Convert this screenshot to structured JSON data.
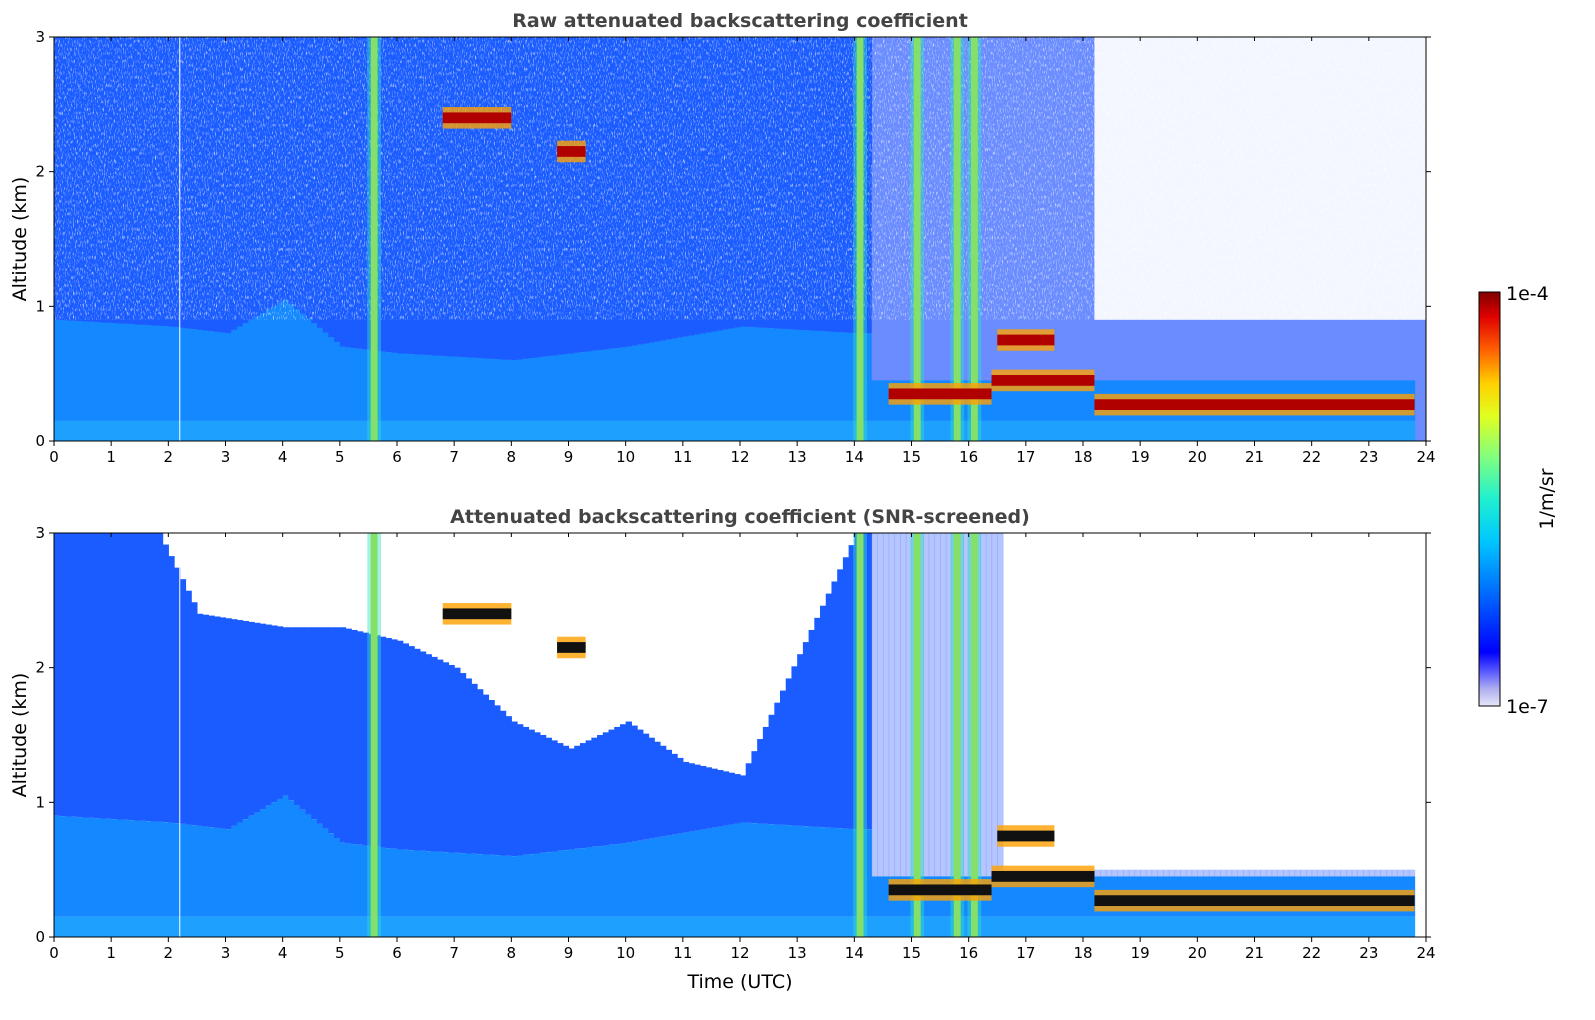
{
  "chart_data": [
    {
      "type": "heatmap",
      "title": "Raw attenuated backscattering coefficient",
      "xlabel": "",
      "ylabel": "Altitude (km)",
      "xlim": [
        0,
        24
      ],
      "ylim": [
        0,
        3
      ],
      "x_ticks": [
        "0",
        "1",
        "2",
        "3",
        "4",
        "5",
        "6",
        "7",
        "8",
        "9",
        "10",
        "11",
        "12",
        "13",
        "14",
        "15",
        "16",
        "17",
        "18",
        "19",
        "20",
        "21",
        "22",
        "23",
        "24"
      ],
      "y_ticks": [
        "0",
        "1",
        "2",
        "3"
      ],
      "colorscale": "jet",
      "features": {
        "boundary_layer_top_km": [
          {
            "t": 0,
            "h": 0.9
          },
          {
            "t": 2,
            "h": 0.85
          },
          {
            "t": 3,
            "h": 0.8
          },
          {
            "t": 4,
            "h": 1.05
          },
          {
            "t": 5,
            "h": 0.7
          },
          {
            "t": 6,
            "h": 0.65
          },
          {
            "t": 8,
            "h": 0.6
          },
          {
            "t": 10,
            "h": 0.7
          },
          {
            "t": 12,
            "h": 0.85
          },
          {
            "t": 14,
            "h": 0.8
          }
        ],
        "cloud_layers": [
          {
            "t_start": 6.8,
            "t_end": 8.0,
            "h": 2.4
          },
          {
            "t_start": 8.8,
            "t_end": 9.3,
            "h": 2.15
          },
          {
            "t_start": 14.6,
            "t_end": 16.4,
            "h": 0.35
          },
          {
            "t_start": 16.4,
            "t_end": 18.2,
            "h": 0.45
          },
          {
            "t_start": 16.5,
            "t_end": 17.5,
            "h": 0.75
          },
          {
            "t_start": 18.2,
            "t_end": 23.8,
            "h": 0.27
          }
        ],
        "precipitation_bands_utc": [
          5.6,
          14.1,
          15.1,
          15.8,
          16.1
        ]
      }
    },
    {
      "type": "heatmap",
      "title": "Attenuated backscattering coefficient (SNR-screened)",
      "xlabel": "Time (UTC)",
      "ylabel": "Altitude (km)",
      "xlim": [
        0,
        24
      ],
      "ylim": [
        0,
        3
      ],
      "x_ticks": [
        "0",
        "1",
        "2",
        "3",
        "4",
        "5",
        "6",
        "7",
        "8",
        "9",
        "10",
        "11",
        "12",
        "13",
        "14",
        "15",
        "16",
        "17",
        "18",
        "19",
        "20",
        "21",
        "22",
        "23",
        "24"
      ],
      "y_ticks": [
        "0",
        "1",
        "2",
        "3"
      ],
      "colorscale": "jet",
      "features": {
        "screened_top_km": [
          {
            "t": 0,
            "h": 3.0
          },
          {
            "t": 1.8,
            "h": 3.0
          },
          {
            "t": 2.5,
            "h": 2.4
          },
          {
            "t": 4,
            "h": 2.3
          },
          {
            "t": 5,
            "h": 2.3
          },
          {
            "t": 6,
            "h": 2.2
          },
          {
            "t": 7,
            "h": 2.0
          },
          {
            "t": 8,
            "h": 1.6
          },
          {
            "t": 9,
            "h": 1.4
          },
          {
            "t": 10,
            "h": 1.6
          },
          {
            "t": 11,
            "h": 1.3
          },
          {
            "t": 12,
            "h": 1.2
          },
          {
            "t": 14,
            "h": 3.0
          }
        ]
      }
    }
  ],
  "colorbar": {
    "label": "1/m/sr",
    "max_label": "1e-4",
    "min_label": "1e-7",
    "scale": "log"
  }
}
